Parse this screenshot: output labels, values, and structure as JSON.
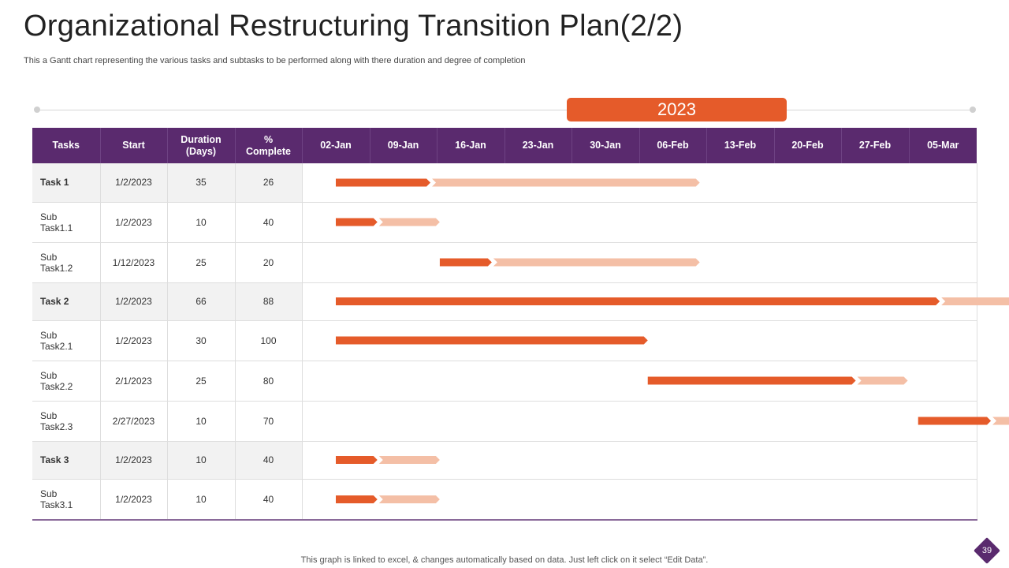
{
  "page": {
    "title": "Organizational Restructuring Transition Plan(2/2)",
    "subtitle": "This a Gantt chart representing the various tasks and subtasks to be performed along with there duration and degree of completion",
    "footer_note": "This graph is linked to excel, & changes automatically based on data. Just left click on it select “Edit Data”.",
    "page_number": "39"
  },
  "colors": {
    "header_bg": "#5a2a6e",
    "complete_bar": "#e55b2a",
    "remaining_bar": "#f4bfa6",
    "year_badge": "#e55b2a"
  },
  "chart_data": {
    "type": "gantt",
    "year": "2023",
    "columns": [
      "Tasks",
      "Start",
      "Duration (Days)",
      "% Complete"
    ],
    "week_labels": [
      "02-Jan",
      "09-Jan",
      "16-Jan",
      "23-Jan",
      "30-Jan",
      "06-Feb",
      "13-Feb",
      "20-Feb",
      "27-Feb",
      "05-Mar"
    ],
    "week_starts": [
      "2023-01-02",
      "2023-01-09",
      "2023-01-16",
      "2023-01-23",
      "2023-01-30",
      "2023-02-06",
      "2023-02-13",
      "2023-02-20",
      "2023-02-27",
      "2023-03-05"
    ],
    "rows": [
      {
        "task": "Task 1",
        "main": true,
        "start": "1/2/2023",
        "duration": "35",
        "complete": "26"
      },
      {
        "task": "Sub Task1.1",
        "main": false,
        "start": "1/2/2023",
        "duration": "10",
        "complete": "40"
      },
      {
        "task": "Sub Task1.2",
        "main": false,
        "start": "1/12/2023",
        "duration": "25",
        "complete": "20"
      },
      {
        "task": "Task 2",
        "main": true,
        "start": "1/2/2023",
        "duration": "66",
        "complete": "88"
      },
      {
        "task": "Sub Task2.1",
        "main": false,
        "start": "1/2/2023",
        "duration": "30",
        "complete": "100"
      },
      {
        "task": "Sub Task2.2",
        "main": false,
        "start": "2/1/2023",
        "duration": "25",
        "complete": "80"
      },
      {
        "task": "Sub Task2.3",
        "main": false,
        "start": "2/27/2023",
        "duration": "10",
        "complete": "70"
      },
      {
        "task": "Task 3",
        "main": true,
        "start": "1/2/2023",
        "duration": "10",
        "complete": "40"
      },
      {
        "task": "Sub Task3.1",
        "main": false,
        "start": "1/2/2023",
        "duration": "10",
        "complete": "40"
      }
    ]
  }
}
